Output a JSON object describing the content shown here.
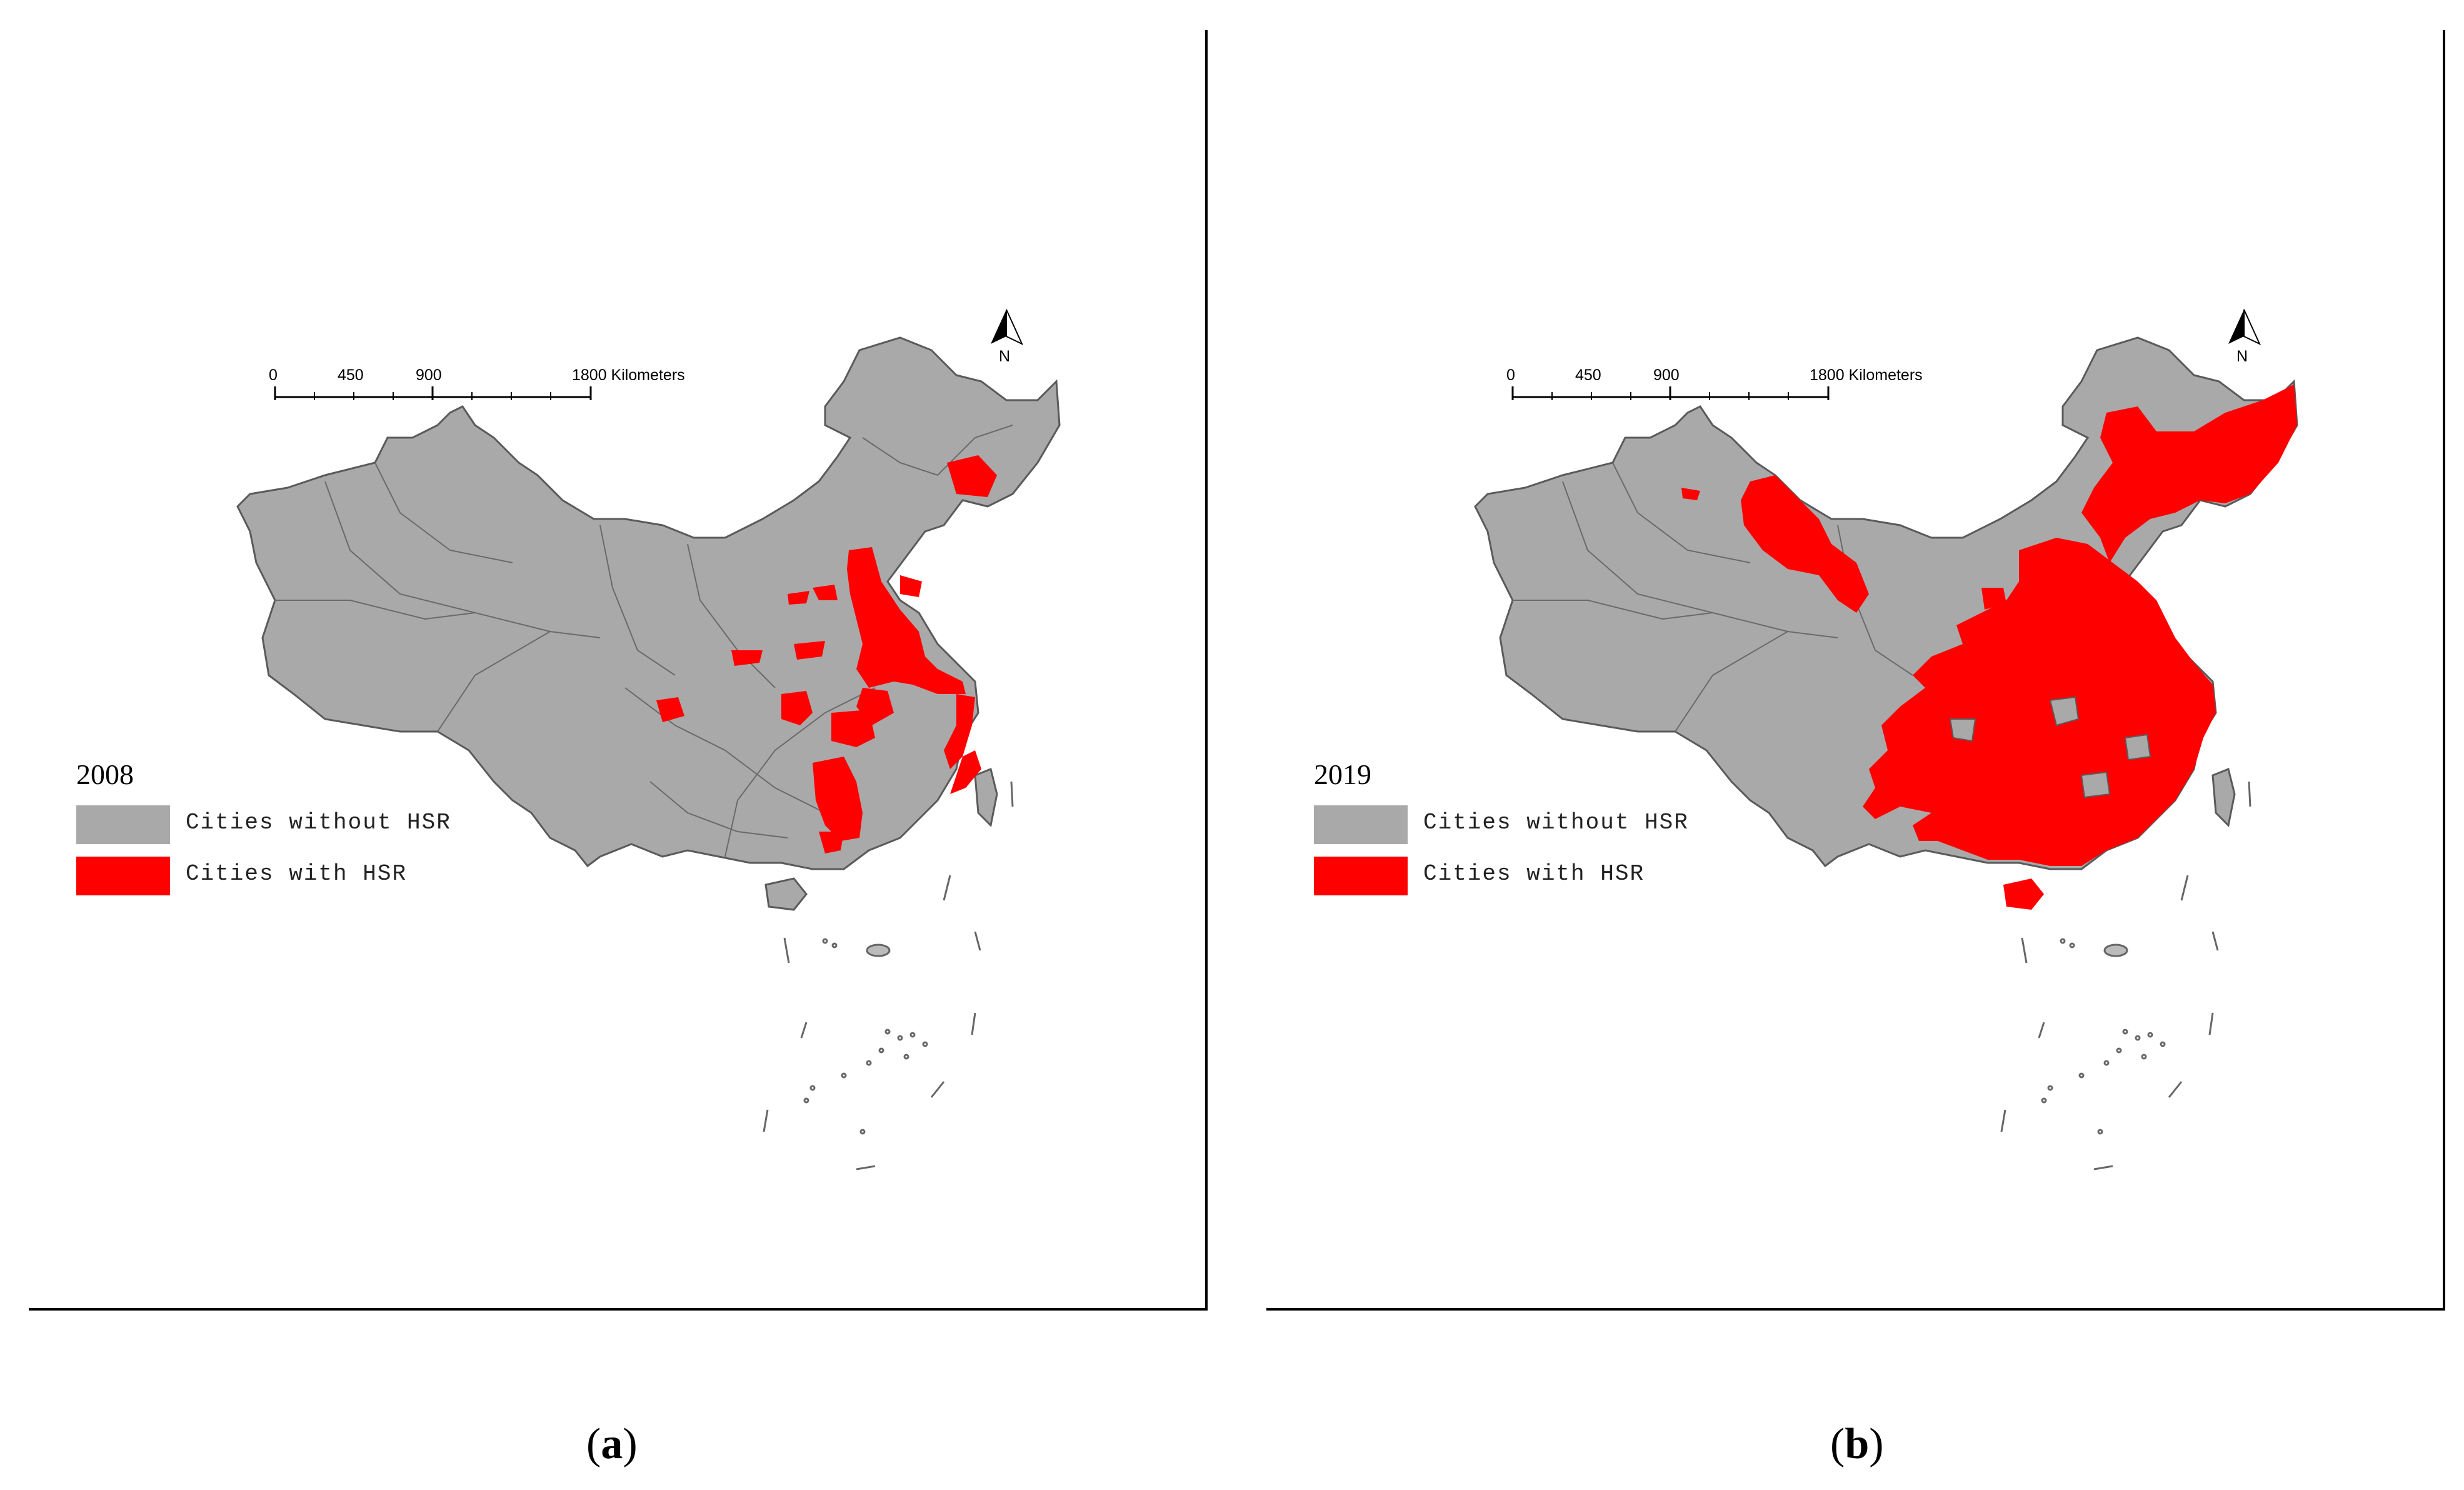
{
  "figure": {
    "colors": {
      "no_hsr": "#a9a9a9",
      "hsr": "#ff0000",
      "border": "#5a5a5a",
      "frame": "#000000"
    },
    "panels": [
      {
        "id": "a",
        "caption_open": "(",
        "caption_letter": "a",
        "caption_close": ")",
        "year": "2008",
        "scale_bar": {
          "ticks": [
            "0",
            "450",
            "900",
            "1800 Kilometers"
          ]
        },
        "north_label": "N",
        "legend": [
          {
            "label": "Cities without HSR",
            "color_key": "no_hsr"
          },
          {
            "label": "Cities with HSR",
            "color_key": "hsr"
          }
        ]
      },
      {
        "id": "b",
        "caption_open": "(",
        "caption_letter": "b",
        "caption_close": ")",
        "year": "2019",
        "scale_bar": {
          "ticks": [
            "0",
            "450",
            "900",
            "1800 Kilometers"
          ]
        },
        "north_label": "N",
        "legend": [
          {
            "label": "Cities without HSR",
            "color_key": "no_hsr"
          },
          {
            "label": "Cities with HSR",
            "color_key": "hsr"
          }
        ]
      }
    ]
  }
}
